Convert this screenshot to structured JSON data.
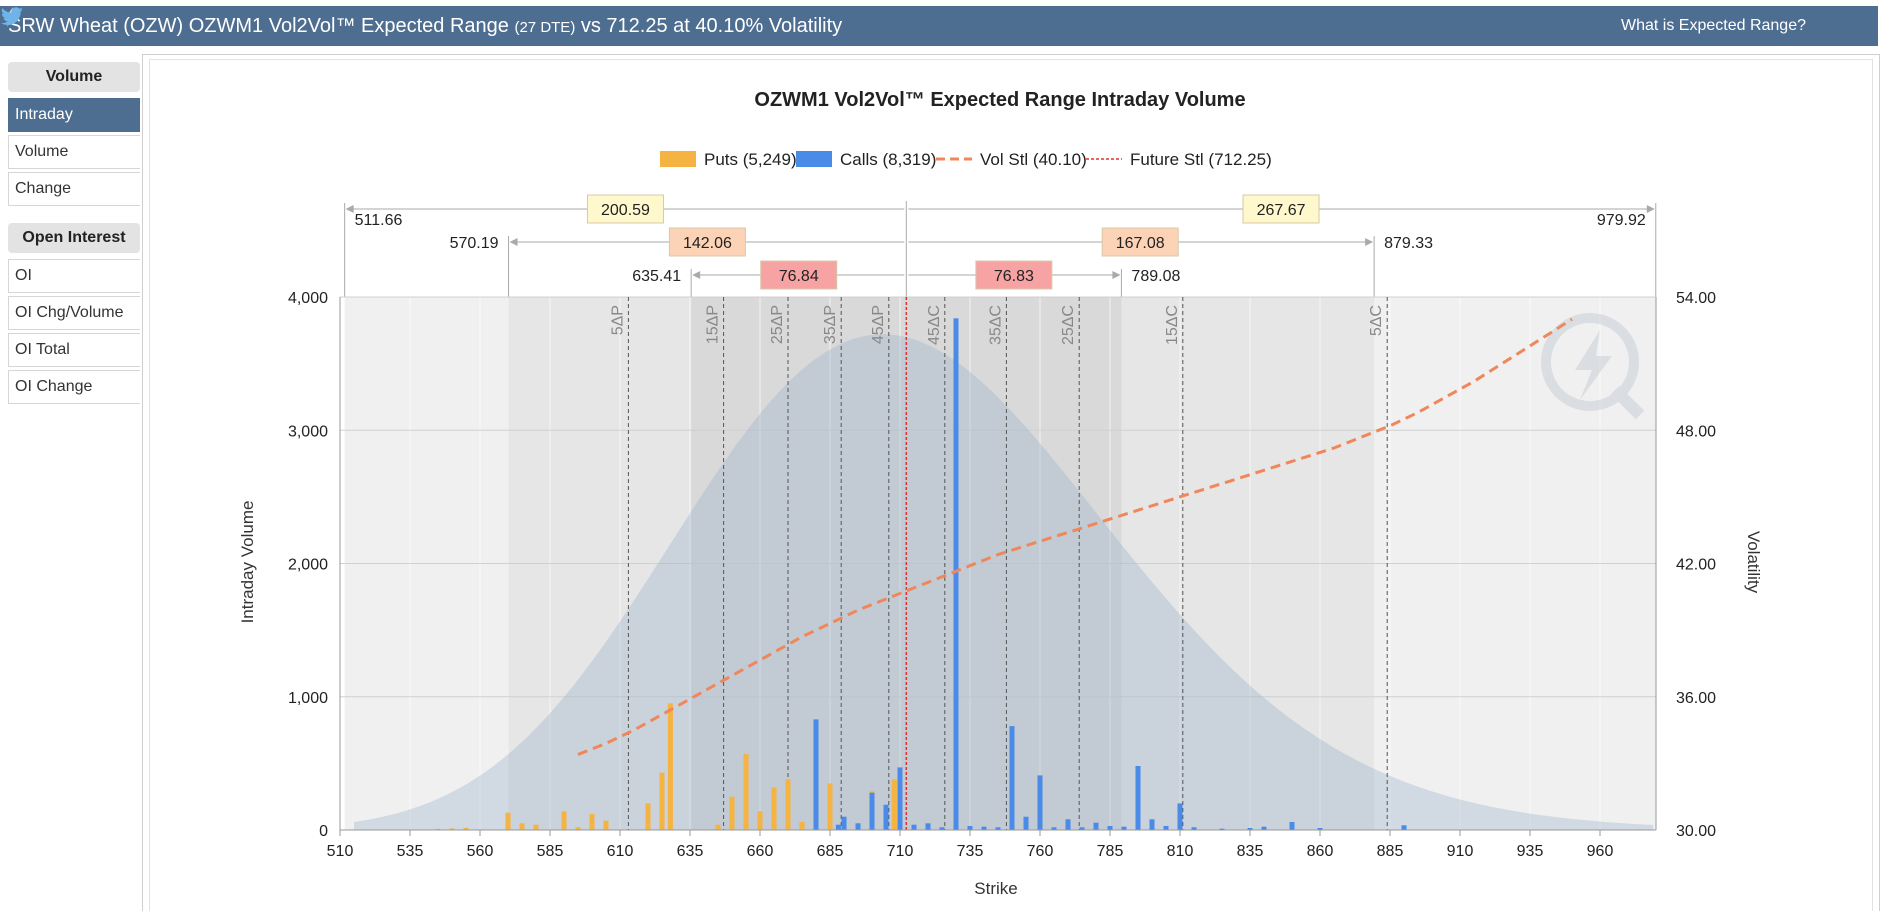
{
  "header": {
    "title_main": "SRW Wheat (OZW) OZWM1 Vol2Vol™ Expected Range",
    "title_dte": "(27 DTE)",
    "title_tail": "vs 712.25 at 40.10% Volatility",
    "help_link": "What is Expected Range?",
    "icons": [
      "lightning-icon",
      "twitter-icon"
    ]
  },
  "sidebar": {
    "volume_heading": "Volume",
    "volume_items": [
      {
        "label": "Intraday",
        "active": true
      },
      {
        "label": "Volume",
        "active": false
      },
      {
        "label": "Change",
        "active": false
      }
    ],
    "oi_heading": "Open Interest",
    "oi_items": [
      {
        "label": "OI",
        "active": false
      },
      {
        "label": "OI Chg/Volume",
        "active": false
      },
      {
        "label": "OI Total",
        "active": false
      },
      {
        "label": "OI Change",
        "active": false
      }
    ]
  },
  "chart_data": {
    "type": "bar",
    "title": "OZWM1 Vol2Vol™ Expected Range Intraday Volume",
    "xlabel": "Strike",
    "ylabel": "Intraday Volume",
    "y2label": "Volatility",
    "xlim": [
      510,
      980
    ],
    "ylim": [
      0,
      4000
    ],
    "y2lim": [
      30,
      54
    ],
    "x_ticks": [
      510,
      535,
      560,
      585,
      610,
      635,
      660,
      685,
      710,
      735,
      760,
      785,
      810,
      835,
      860,
      885,
      910,
      935,
      960
    ],
    "y_ticks": [
      "0",
      "1,000",
      "2,000",
      "3,000",
      "4,000"
    ],
    "y2_ticks": [
      "30.00",
      "36.00",
      "42.00",
      "48.00",
      "54.00"
    ],
    "legend_position": "top",
    "legend": [
      {
        "label": "Puts (5,249)",
        "color": "#f5b342",
        "kind": "box"
      },
      {
        "label": "Calls (8,319)",
        "color": "#4a8be8",
        "kind": "box"
      },
      {
        "label": "Vol Stl (40.10)",
        "color": "#f0875a",
        "kind": "dash"
      },
      {
        "label": "Future Stl (712.25)",
        "color": "#e8302a",
        "kind": "dot"
      }
    ],
    "future_settle": 712.25,
    "expected_range": [
      {
        "low": 511.66,
        "high": 979.92,
        "low_label": "511.66",
        "high_label": "979.92",
        "down": "200.59",
        "up": "267.67",
        "color": "#fff8cc"
      },
      {
        "low": 570.19,
        "high": 879.33,
        "low_label": "570.19",
        "high_label": "879.33",
        "down": "142.06",
        "up": "167.08",
        "color": "#fcd3b6"
      },
      {
        "low": 635.41,
        "high": 789.08,
        "low_label": "635.41",
        "high_label": "789.08",
        "down": "76.84",
        "up": "76.83",
        "color": "#f7a3a3"
      }
    ],
    "delta_lines": [
      {
        "label": "5ΔP",
        "x": 613
      },
      {
        "label": "15ΔP",
        "x": 647
      },
      {
        "label": "25ΔP",
        "x": 670
      },
      {
        "label": "35ΔP",
        "x": 689
      },
      {
        "label": "45ΔP",
        "x": 706
      },
      {
        "label": "45ΔC",
        "x": 726
      },
      {
        "label": "35ΔC",
        "x": 748
      },
      {
        "label": "25ΔC",
        "x": 774
      },
      {
        "label": "15ΔC",
        "x": 811
      },
      {
        "label": "5ΔC",
        "x": 884
      }
    ],
    "series": [
      {
        "name": "Puts (5,249)",
        "color": "#f5b342",
        "points": [
          [
            540,
            4
          ],
          [
            545,
            8
          ],
          [
            550,
            12
          ],
          [
            555,
            16
          ],
          [
            570,
            130
          ],
          [
            575,
            50
          ],
          [
            580,
            40
          ],
          [
            590,
            140
          ],
          [
            595,
            20
          ],
          [
            600,
            120
          ],
          [
            605,
            70
          ],
          [
            620,
            200
          ],
          [
            625,
            430
          ],
          [
            628,
            950
          ],
          [
            645,
            40
          ],
          [
            650,
            250
          ],
          [
            655,
            570
          ],
          [
            660,
            140
          ],
          [
            665,
            320
          ],
          [
            670,
            380
          ],
          [
            675,
            60
          ],
          [
            680,
            90
          ],
          [
            685,
            350
          ],
          [
            690,
            80
          ],
          [
            695,
            40
          ],
          [
            700,
            290
          ],
          [
            705,
            90
          ],
          [
            708,
            380
          ],
          [
            715,
            30
          ]
        ]
      },
      {
        "name": "Calls (8,319)",
        "color": "#4a8be8",
        "points": [
          [
            680,
            830
          ],
          [
            688,
            40
          ],
          [
            690,
            100
          ],
          [
            695,
            50
          ],
          [
            700,
            280
          ],
          [
            705,
            190
          ],
          [
            710,
            470
          ],
          [
            715,
            40
          ],
          [
            720,
            50
          ],
          [
            725,
            20
          ],
          [
            730,
            3840
          ],
          [
            735,
            30
          ],
          [
            740,
            25
          ],
          [
            745,
            20
          ],
          [
            750,
            780
          ],
          [
            755,
            100
          ],
          [
            760,
            410
          ],
          [
            765,
            20
          ],
          [
            770,
            80
          ],
          [
            775,
            20
          ],
          [
            780,
            55
          ],
          [
            785,
            30
          ],
          [
            790,
            25
          ],
          [
            795,
            480
          ],
          [
            800,
            80
          ],
          [
            805,
            30
          ],
          [
            810,
            200
          ],
          [
            815,
            20
          ],
          [
            825,
            10
          ],
          [
            835,
            15
          ],
          [
            840,
            25
          ],
          [
            850,
            60
          ],
          [
            860,
            15
          ],
          [
            890,
            35
          ]
        ]
      }
    ],
    "vol_curve": [
      [
        595,
        33.4
      ],
      [
        605,
        33.9
      ],
      [
        615,
        34.5
      ],
      [
        625,
        35.2
      ],
      [
        635,
        35.9
      ],
      [
        645,
        36.6
      ],
      [
        655,
        37.3
      ],
      [
        665,
        38.0
      ],
      [
        675,
        38.7
      ],
      [
        685,
        39.3
      ],
      [
        695,
        39.9
      ],
      [
        705,
        40.4
      ],
      [
        715,
        40.9
      ],
      [
        725,
        41.4
      ],
      [
        735,
        41.9
      ],
      [
        745,
        42.4
      ],
      [
        755,
        42.8
      ],
      [
        765,
        43.2
      ],
      [
        775,
        43.6
      ],
      [
        785,
        44.0
      ],
      [
        795,
        44.4
      ],
      [
        805,
        44.8
      ],
      [
        815,
        45.2
      ],
      [
        825,
        45.6
      ],
      [
        835,
        46.0
      ],
      [
        845,
        46.4
      ],
      [
        855,
        46.8
      ],
      [
        865,
        47.2
      ],
      [
        875,
        47.7
      ],
      [
        885,
        48.2
      ],
      [
        895,
        48.8
      ],
      [
        905,
        49.5
      ],
      [
        915,
        50.2
      ],
      [
        925,
        51.0
      ],
      [
        935,
        51.8
      ],
      [
        945,
        52.6
      ],
      [
        950,
        53.0
      ]
    ]
  }
}
